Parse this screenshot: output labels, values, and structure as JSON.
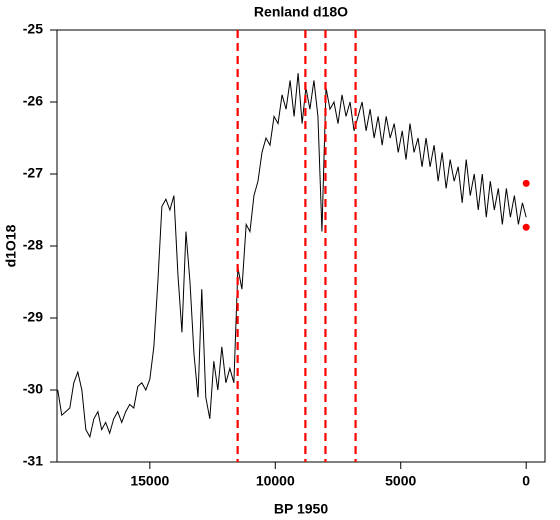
{
  "chart_data": {
    "type": "line",
    "title": "Renland d18O",
    "x_label": "BP 1950",
    "y_label": "d1O18",
    "x": [
      18670,
      18510,
      18350,
      18190,
      18030,
      17870,
      17710,
      17550,
      17390,
      17230,
      17070,
      16920,
      16760,
      16600,
      16440,
      16280,
      16120,
      15960,
      15800,
      15640,
      15480,
      15320,
      15160,
      15000,
      14840,
      14680,
      14520,
      14360,
      14200,
      14040,
      13880,
      13720,
      13560,
      13400,
      13240,
      13080,
      12930,
      12770,
      12610,
      12450,
      12290,
      12130,
      11970,
      11810,
      11650,
      11490,
      11330,
      11160,
      11010,
      10850,
      10690,
      10530,
      10370,
      10210,
      10050,
      9890,
      9730,
      9570,
      9410,
      9250,
      9090,
      8930,
      8780,
      8620,
      8460,
      8300,
      8140,
      7980,
      7820,
      7660,
      7500,
      7340,
      7180,
      7020,
      6860,
      6700,
      6540,
      6380,
      6220,
      6060,
      5900,
      5740,
      5580,
      5420,
      5260,
      5100,
      4940,
      4790,
      4630,
      4470,
      4310,
      4150,
      3990,
      3830,
      3670,
      3510,
      3350,
      3190,
      3030,
      2870,
      2710,
      2550,
      2390,
      2230,
      2070,
      1910,
      1750,
      1590,
      1430,
      1270,
      1110,
      950,
      790,
      630,
      470,
      310,
      150,
      0
    ],
    "values": [
      -30.0,
      -30.35,
      -30.3,
      -30.25,
      -29.9,
      -29.75,
      -30.0,
      -30.55,
      -30.65,
      -30.4,
      -30.3,
      -30.55,
      -30.45,
      -30.6,
      -30.4,
      -30.3,
      -30.45,
      -30.3,
      -30.2,
      -30.25,
      -29.95,
      -29.9,
      -30.0,
      -29.85,
      -29.4,
      -28.5,
      -27.45,
      -27.35,
      -27.5,
      -27.3,
      -28.4,
      -29.2,
      -27.8,
      -28.5,
      -29.5,
      -30.1,
      -28.6,
      -30.1,
      -30.4,
      -29.6,
      -30.0,
      -29.4,
      -29.9,
      -29.7,
      -29.9,
      -28.3,
      -28.6,
      -27.7,
      -27.8,
      -27.3,
      -27.1,
      -26.7,
      -26.5,
      -26.6,
      -26.2,
      -26.3,
      -25.9,
      -26.1,
      -25.7,
      -26.2,
      -25.6,
      -26.3,
      -25.8,
      -26.1,
      -25.7,
      -26.2,
      -27.8,
      -25.8,
      -26.1,
      -26.0,
      -26.3,
      -25.9,
      -26.2,
      -26.0,
      -26.4,
      -26.2,
      -26.0,
      -26.4,
      -26.1,
      -26.5,
      -26.2,
      -26.6,
      -26.2,
      -26.5,
      -26.3,
      -26.7,
      -26.4,
      -26.8,
      -26.3,
      -26.7,
      -26.5,
      -26.9,
      -26.5,
      -26.9,
      -26.6,
      -27.1,
      -26.7,
      -27.2,
      -26.8,
      -27.1,
      -26.9,
      -27.4,
      -26.8,
      -27.3,
      -27.0,
      -27.5,
      -27.0,
      -27.6,
      -27.1,
      -27.5,
      -27.2,
      -27.7,
      -27.2,
      -27.6,
      -27.3,
      -27.7,
      -27.4,
      -27.6
    ],
    "color": "#000000",
    "vlines": [
      11500,
      8800,
      8000,
      6800
    ],
    "vline_color": "#ff0000",
    "points": {
      "x": [
        0,
        0
      ],
      "y": [
        -27.13,
        -27.74
      ],
      "color": "#ff0000"
    },
    "xlim": [
      18700,
      -750
    ],
    "xticks": [
      15000,
      10000,
      5000,
      0
    ],
    "ylim": [
      -31,
      -25
    ],
    "yticks": [
      -31,
      -30,
      -29,
      -28,
      -27,
      -26,
      -25
    ]
  }
}
